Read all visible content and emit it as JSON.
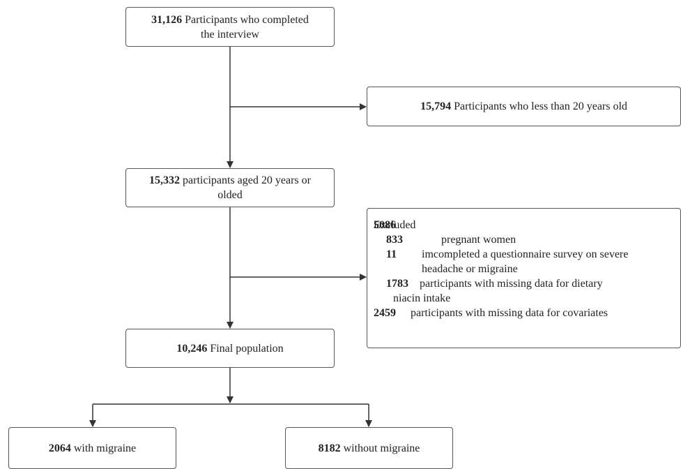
{
  "nodes": {
    "interview": {
      "count": "31,126",
      "text_line1": "Participants who completed",
      "text_line2": "the interview"
    },
    "under20": {
      "count": "15,794",
      "text": "Participants who less than 20 years old"
    },
    "aged20": {
      "count": "15,332",
      "text_line1": "participants aged 20 years or",
      "text_line2": "olded"
    },
    "excluded": {
      "count": "5086",
      "label": "Excluded",
      "items": [
        {
          "count": "833",
          "text_lines": [
            "pregnant women"
          ]
        },
        {
          "count": "11",
          "text_lines": [
            "imcompleted a questionnaire survey on severe",
            "headache or migraine"
          ]
        },
        {
          "count": "1783",
          "text_lines": [
            "participants with missing data for dietary",
            "niacin intake"
          ]
        },
        {
          "count": "2459",
          "text_lines": [
            "participants with missing data for covariates"
          ]
        }
      ]
    },
    "final": {
      "count": "10,246",
      "text": "Final population"
    },
    "migraine": {
      "count": "2064",
      "text": "with migraine"
    },
    "no_migraine": {
      "count": "8182",
      "text": "without migraine"
    }
  },
  "colors": {
    "line": "#333333",
    "border": "#555555",
    "text": "#222222"
  }
}
